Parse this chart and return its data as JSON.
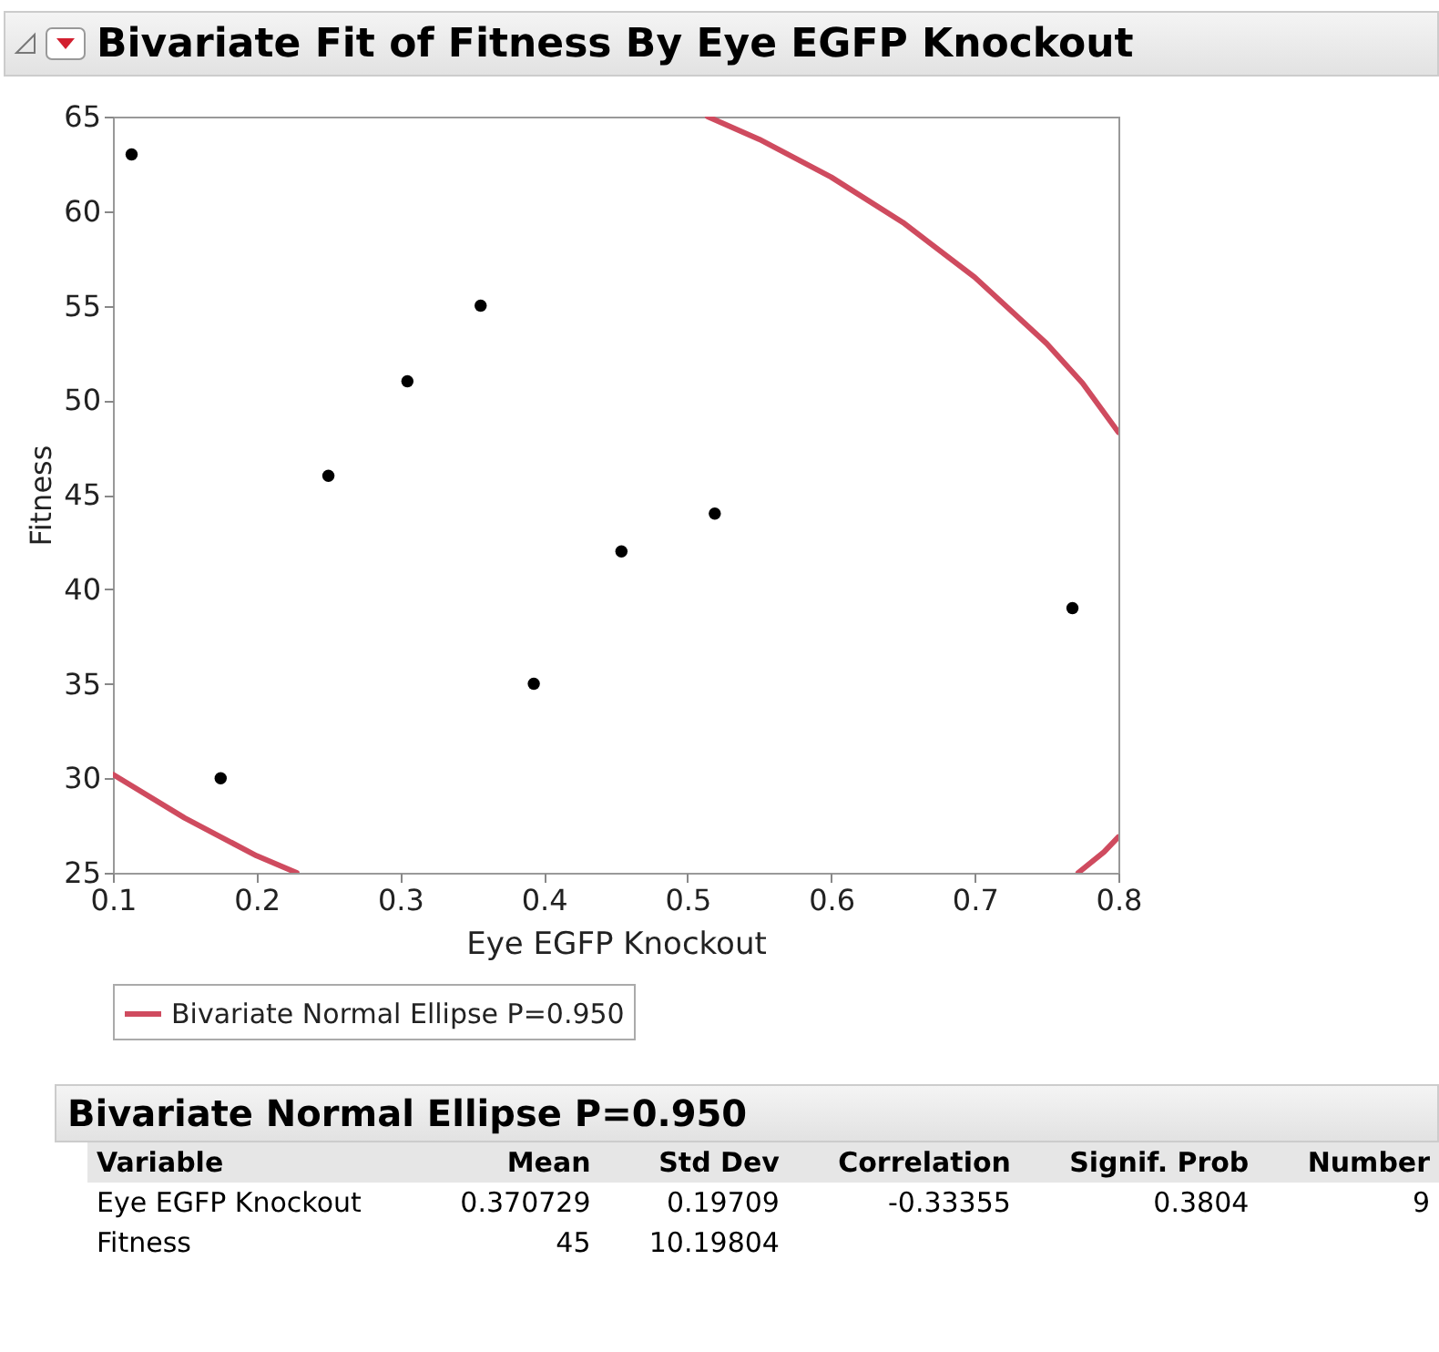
{
  "chart_data": {
    "type": "scatter",
    "title": "Bivariate Fit of Fitness By Eye EGFP Knockout",
    "xlabel": "Eye EGFP Knockout",
    "ylabel": "Fitness",
    "series": [
      {
        "type": "line",
        "name": "Bivariate Normal Ellipse P=0.950",
        "color": "#cf4b5f",
        "x": [
          0.514,
          0.55,
          0.6,
          0.65,
          0.7,
          0.75,
          0.775,
          0.8,
          null,
          0.8,
          0.79,
          0.772,
          null,
          0.228,
          0.2,
          0.15,
          0.1
        ],
        "values": [
          65,
          63.8,
          61.8,
          59.4,
          56.5,
          53,
          50.9,
          48.3,
          null,
          26.9,
          26.1,
          25,
          null,
          25,
          25.9,
          27.9,
          30.2
        ]
      },
      {
        "marker": "circle",
        "color": "#000000",
        "x": [
          0.113,
          0.175,
          0.25,
          0.305,
          0.356,
          0.393,
          0.454,
          0.519,
          0.768
        ],
        "values": [
          63,
          30,
          46,
          51,
          55,
          35,
          42,
          44,
          39
        ]
      }
    ],
    "xlim": [
      0.1,
      0.8
    ],
    "xticks": [
      0.1,
      0.2,
      0.3,
      0.4,
      0.5,
      0.6,
      0.7,
      0.8
    ],
    "ylim": [
      25,
      65
    ],
    "yticks": [
      25,
      30,
      35,
      40,
      45,
      50,
      55,
      60,
      65
    ],
    "grid": false,
    "legend": "bottom",
    "line_style": "solid",
    "annotations": [
      "Bivariate Normal Ellipse P=0.950",
      "Variable",
      "Mean",
      "Std Dev",
      "Correlation",
      "Signif. Prob",
      "Number",
      "Eye EGFP Knockout",
      "0.370729",
      "0.19709",
      "-0.33355",
      "0.3804",
      "9",
      "Fitness",
      "45",
      "10.19804"
    ]
  }
}
